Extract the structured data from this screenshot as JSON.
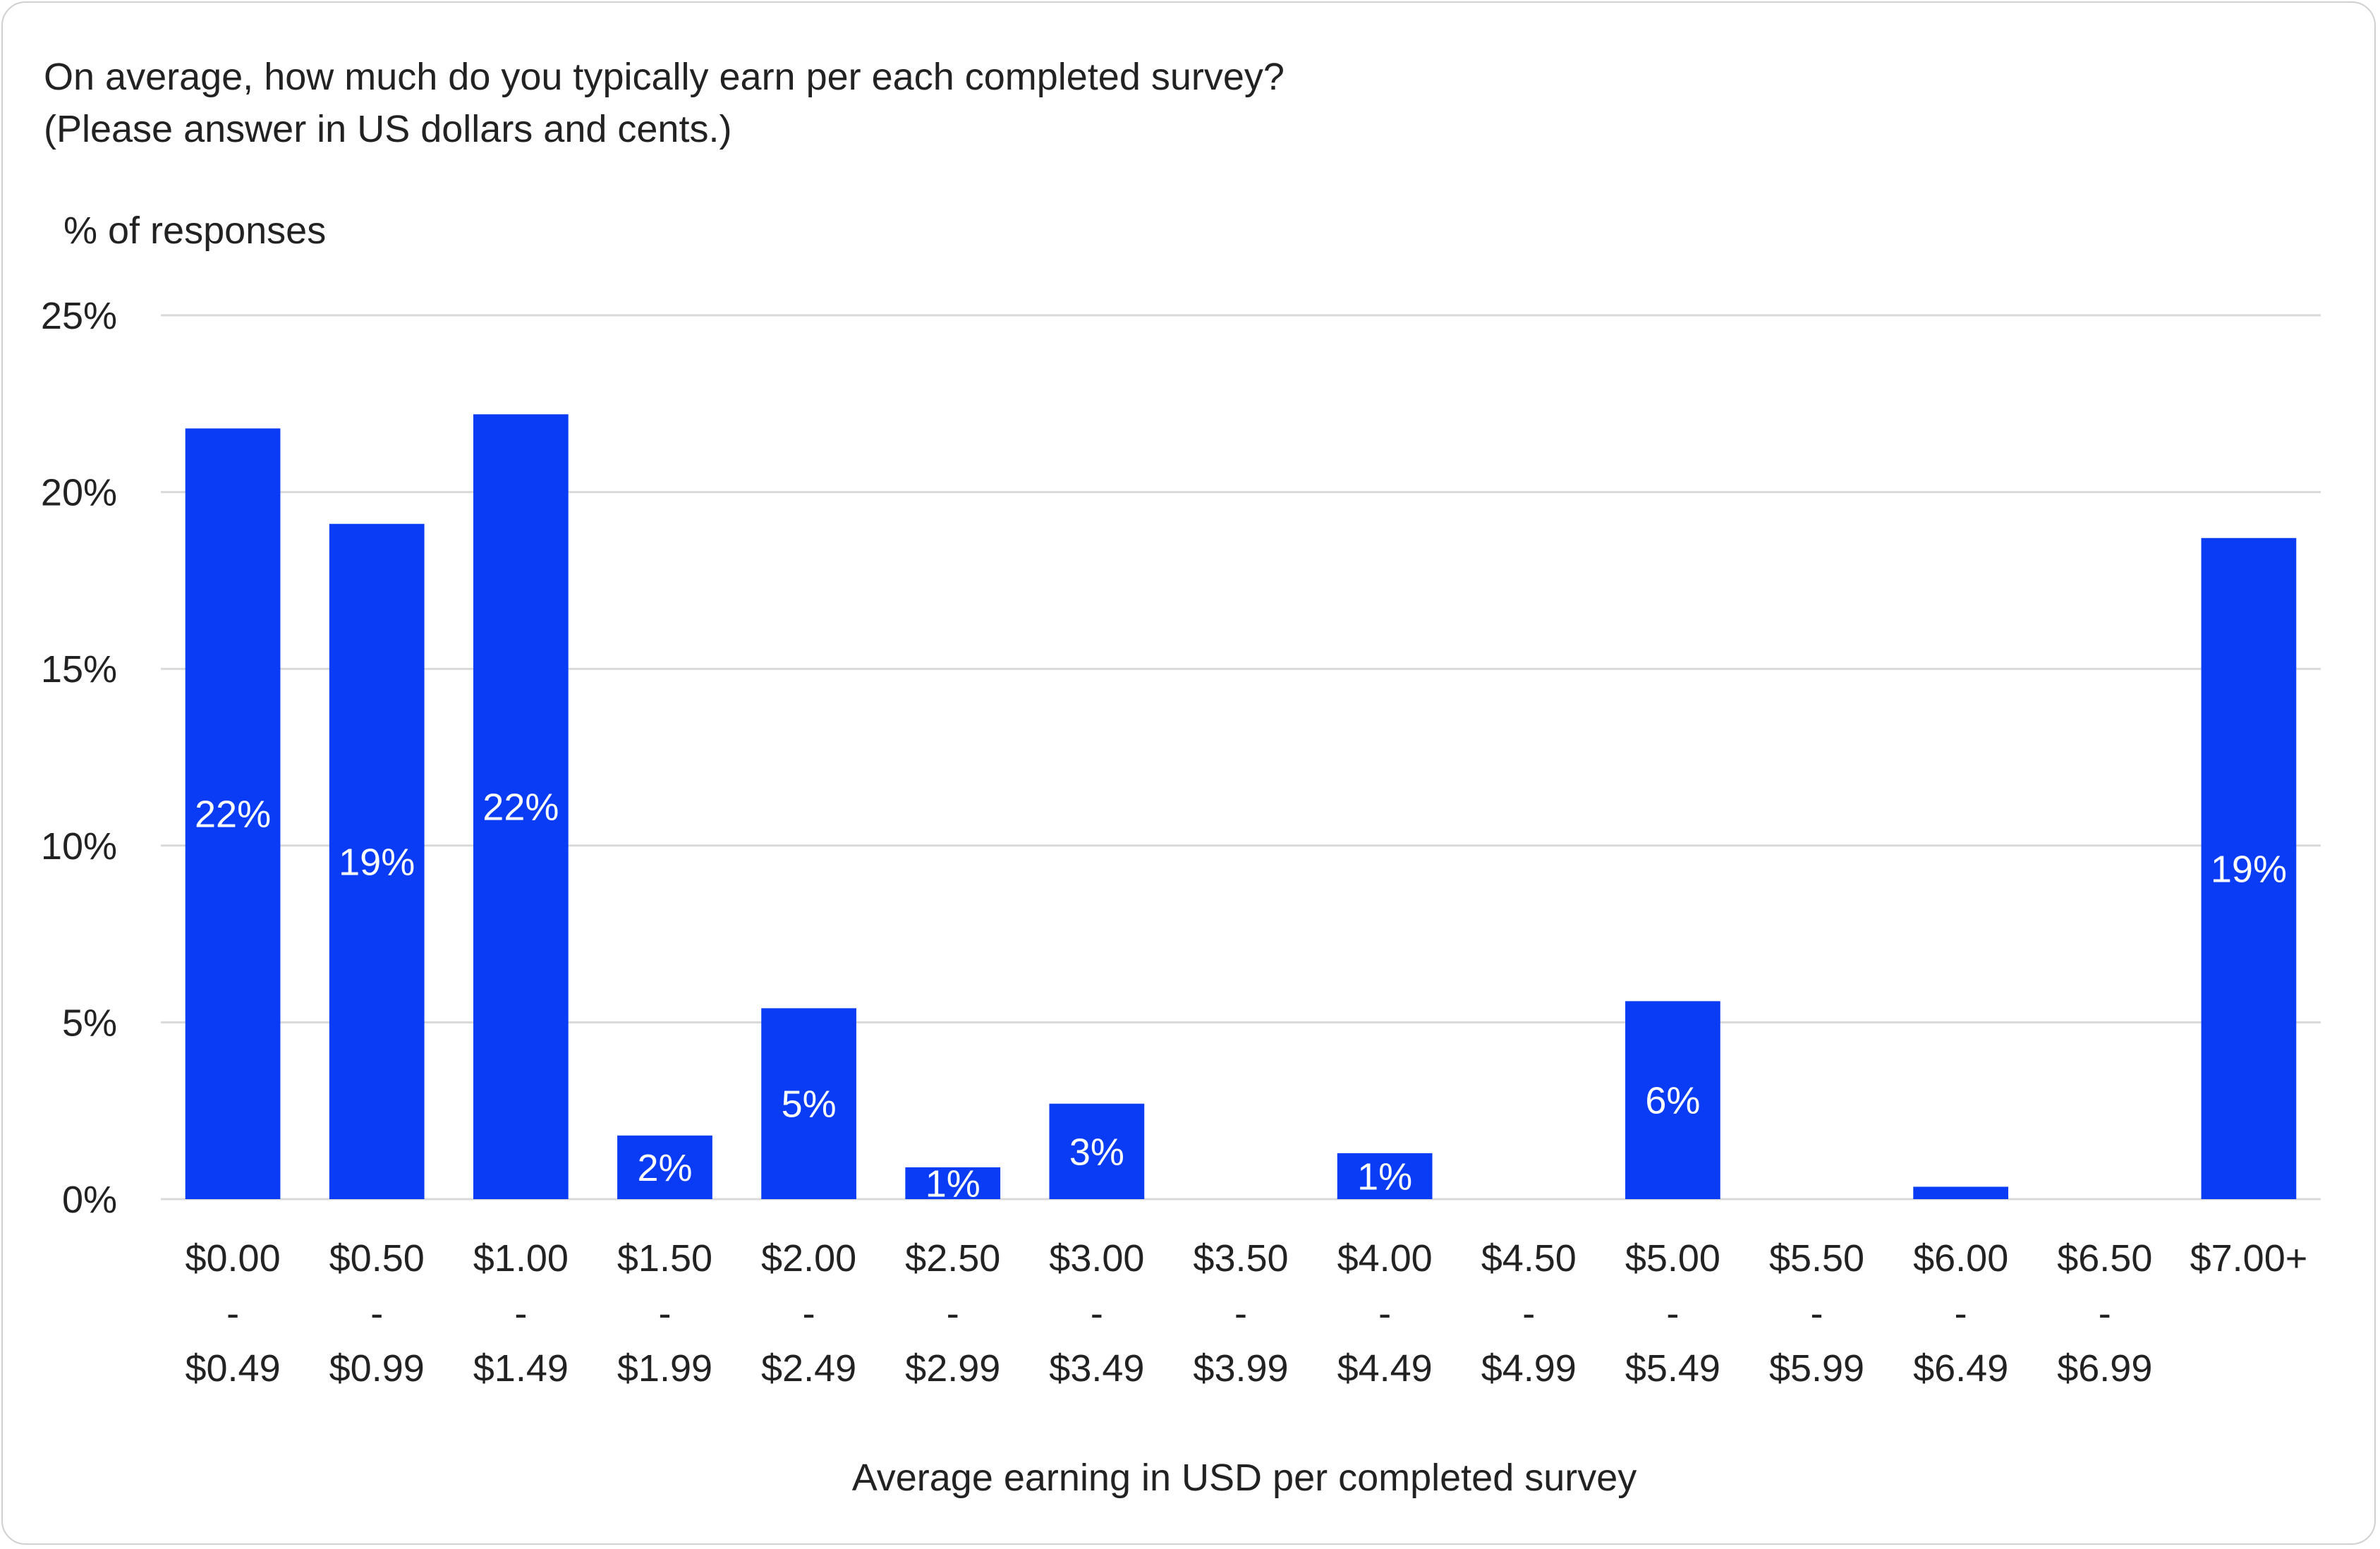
{
  "chart_data": {
    "type": "bar",
    "title": "On average, how much do you typically earn per each completed survey?",
    "subtitle": "(Please answer in US dollars and cents.)",
    "ylabel": "% of responses",
    "xlabel": "Average earning in USD per completed survey",
    "ylim": [
      0,
      25
    ],
    "yticks": [
      "0%",
      "5%",
      "10%",
      "15%",
      "20%",
      "25%"
    ],
    "grid": true,
    "legend": "none",
    "categories": [
      [
        "$0.00",
        "-",
        "$0.49"
      ],
      [
        "$0.50",
        "-",
        "$0.99"
      ],
      [
        "$1.00",
        "-",
        "$1.49"
      ],
      [
        "$1.50",
        "-",
        "$1.99"
      ],
      [
        "$2.00",
        "-",
        "$2.49"
      ],
      [
        "$2.50",
        "-",
        "$2.99"
      ],
      [
        "$3.00",
        "-",
        "$3.49"
      ],
      [
        "$3.50",
        "-",
        "$3.99"
      ],
      [
        "$4.00",
        "-",
        "$4.49"
      ],
      [
        "$4.50",
        "-",
        "$4.99"
      ],
      [
        "$5.00",
        "-",
        "$5.49"
      ],
      [
        "$5.50",
        "-",
        "$5.99"
      ],
      [
        "$6.00",
        "-",
        "$6.49"
      ],
      [
        "$6.50",
        "-",
        "$6.99"
      ],
      [
        "$7.00+"
      ]
    ],
    "values": [
      21.8,
      19.1,
      22.2,
      1.8,
      5.4,
      0.9,
      2.7,
      0,
      1.3,
      0,
      5.6,
      0,
      0.35,
      0,
      18.7
    ],
    "data_labels": [
      "22%",
      "19%",
      "22%",
      "2%",
      "5%",
      "1%",
      "3%",
      "",
      "1%",
      "",
      "6%",
      "",
      "",
      "",
      "19%"
    ],
    "colors": {
      "bar": "#0a3cf5",
      "label": "#ffffff",
      "grid": "#d9d9d9",
      "text": "#222222"
    }
  }
}
